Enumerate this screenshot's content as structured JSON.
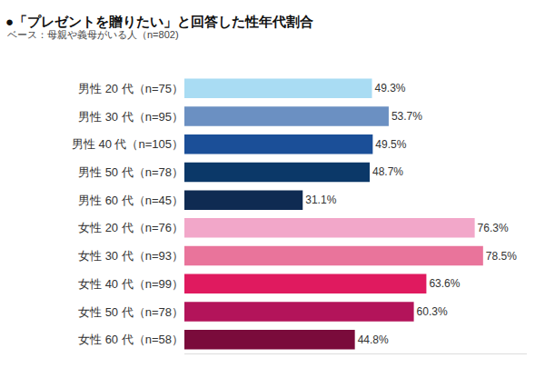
{
  "chart_data": {
    "type": "bar",
    "orientation": "horizontal",
    "title": "●「プレゼントを贈りたい」と回答した性年代割合",
    "subtitle": "ベース：母親や義母がいる人（n=802)",
    "categories": [
      "男性 20 代（n=75）",
      "男性 30 代（n=95）",
      "男性 40 代（n=105）",
      "男性 50 代（n=78）",
      "男性 60 代（n=45）",
      "女性 20 代（n=76）",
      "女性 30 代（n=93）",
      "女性 40 代（n=99）",
      "女性 50 代（n=78）",
      "女性 60 代（n=58）"
    ],
    "values": [
      49.3,
      53.7,
      49.5,
      48.7,
      31.1,
      76.3,
      78.5,
      63.6,
      60.3,
      44.8
    ],
    "value_labels": [
      "49.3%",
      "53.7%",
      "49.5%",
      "48.7%",
      "31.1%",
      "76.3%",
      "78.5%",
      "63.6%",
      "60.3%",
      "44.8%"
    ],
    "colors": [
      "#a9dcf3",
      "#6b90c2",
      "#1b4f98",
      "#0b3868",
      "#0f2b52",
      "#f2a7c9",
      "#e9749b",
      "#e01a5f",
      "#b3145a",
      "#7a0b3b"
    ],
    "xlim": [
      0,
      90
    ],
    "data_labels": true,
    "tick_labels": "y",
    "grid": false
  }
}
